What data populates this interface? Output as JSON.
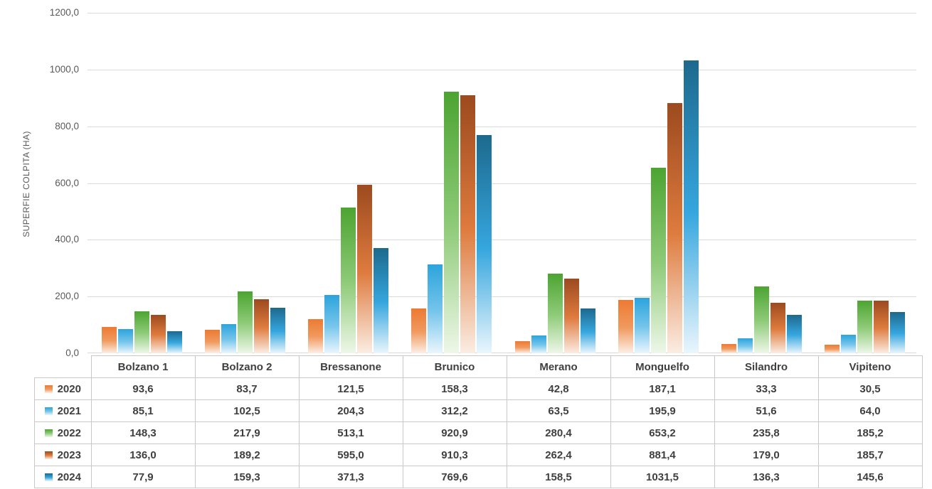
{
  "style": {
    "background": "#FFFFFF",
    "grid": "#D9D9D9",
    "axis_text": "#595959",
    "table_border": "#C9C7C7",
    "table_text": "#3F3F3F"
  },
  "chart_data": {
    "type": "bar",
    "title": "",
    "xlabel": "",
    "ylabel": "SUPERFIE COLPITA (HA)",
    "ylim": [
      0,
      1200
    ],
    "ytick_step": 200,
    "yticks": [
      "0,0",
      "200,0",
      "400,0",
      "600,0",
      "800,0",
      "1000,0",
      "1200,0"
    ],
    "grid": true,
    "legend_position": "table-rows-left",
    "value_format": "one-decimal-comma",
    "categories": [
      "Bolzano 1",
      "Bolzano 2",
      "Bressanone",
      "Brunico",
      "Merano",
      "Monguelfo",
      "Silandro",
      "Vipiteno"
    ],
    "series": [
      {
        "name": "2020",
        "color_top": "#EC7A33",
        "color_mid": "#F09A5F",
        "color_bottom": "#FCEFE6",
        "values": [
          93.6,
          83.7,
          121.5,
          158.3,
          42.8,
          187.1,
          33.3,
          30.5
        ]
      },
      {
        "name": "2021",
        "color_top": "#2CA4DC",
        "color_mid": "#74C4EB",
        "color_bottom": "#EAF6FD",
        "values": [
          85.1,
          102.5,
          204.3,
          312.2,
          63.5,
          195.9,
          51.6,
          64.0
        ]
      },
      {
        "name": "2022",
        "color_top": "#4CA431",
        "color_mid": "#8FCB79",
        "color_bottom": "#EEF7E9",
        "values": [
          148.3,
          217.9,
          513.1,
          920.9,
          280.4,
          653.2,
          235.8,
          185.2
        ]
      },
      {
        "name": "2023",
        "color_top": "#9C4A1F",
        "color_mid": "#DE7B3E",
        "color_bottom": "#FBEDE3",
        "values": [
          136.0,
          189.2,
          595.0,
          910.3,
          262.4,
          881.4,
          179.0,
          185.7
        ]
      },
      {
        "name": "2024",
        "color_top": "#1D698D",
        "color_mid": "#36A6DE",
        "color_bottom": "#EAF6FD",
        "values": [
          77.9,
          159.3,
          371.3,
          769.6,
          158.5,
          1031.5,
          136.3,
          145.6
        ]
      }
    ]
  }
}
